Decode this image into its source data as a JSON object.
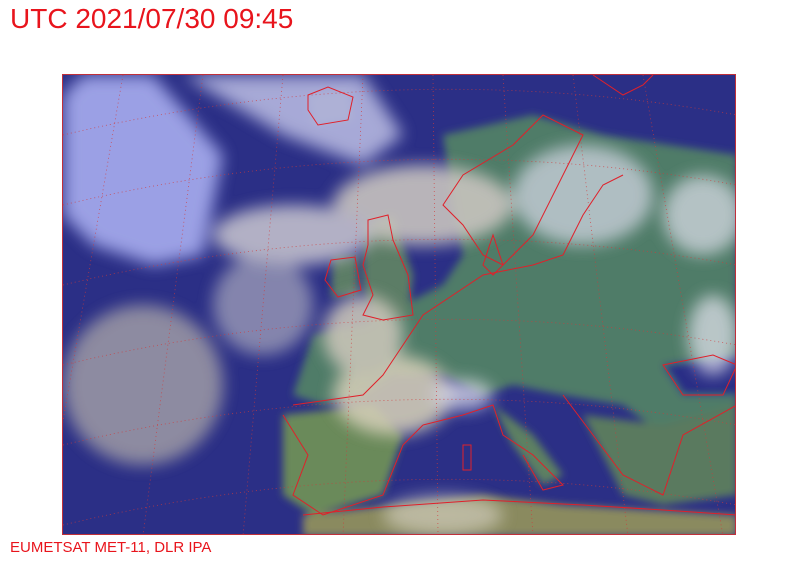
{
  "header": {
    "title": "UTC 2021/07/30 09:45"
  },
  "map": {
    "type": "satellite-rgb-composite",
    "region": "Europe and North Atlantic",
    "colors": {
      "ocean": "#2b2f86",
      "land": "#4e7a6a",
      "cloud": "#c9c6c8",
      "high_cloud": "#a9aef0",
      "coastline": "#e0202a",
      "grid": "#d23a3a"
    }
  },
  "footer": {
    "credit": "EUMETSAT MET-11, DLR IPA"
  }
}
